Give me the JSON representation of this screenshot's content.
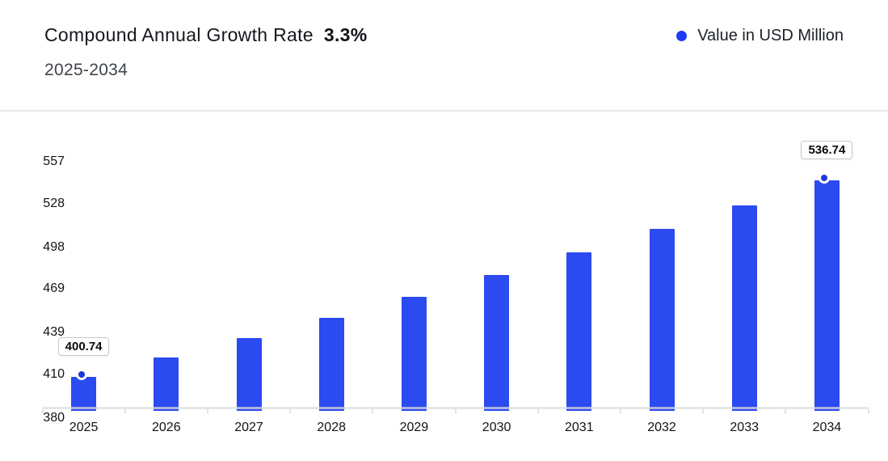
{
  "header": {
    "title": "Compound Annual Growth Rate",
    "growth_rate": "3.3%",
    "subtitle": "2025-2034",
    "legend": {
      "label": "Value in USD Million"
    }
  },
  "colors": {
    "bar": "#2b4af0",
    "marker_dot": "#1c38da",
    "legend_dot": "#1d3cf0"
  },
  "chart_data": {
    "type": "bar",
    "title": "Compound Annual Growth Rate 3.3%",
    "subtitle": "2025-2034",
    "series_name": "Value in USD Million",
    "categories": [
      "2025",
      "2026",
      "2027",
      "2028",
      "2029",
      "2030",
      "2031",
      "2032",
      "2033",
      "2034"
    ],
    "values": [
      400.74,
      413.96,
      427.63,
      441.74,
      456.31,
      471.37,
      486.93,
      503.0,
      519.6,
      536.74
    ],
    "data_labels": [
      {
        "index": 0,
        "text": "400.74"
      },
      {
        "index": 9,
        "text": "536.74"
      }
    ],
    "yticks": [
      380,
      410,
      439,
      469,
      498,
      528,
      557
    ],
    "ylim": [
      380,
      580
    ],
    "grid": false,
    "legend_position": "top-right"
  }
}
